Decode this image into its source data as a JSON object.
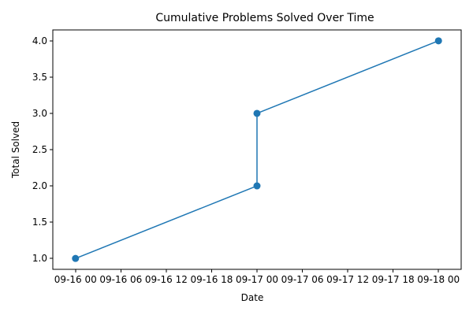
{
  "chart_data": {
    "type": "line",
    "title": "Cumulative Problems Solved Over Time",
    "xlabel": "Date",
    "ylabel": "Total Solved",
    "x_ticks": [
      "09-16 00",
      "09-16 06",
      "09-16 12",
      "09-16 18",
      "09-17 00",
      "09-17 06",
      "09-17 12",
      "09-17 18",
      "09-18 00"
    ],
    "y_ticks": [
      "1.0",
      "1.5",
      "2.0",
      "2.5",
      "3.0",
      "3.5",
      "4.0"
    ],
    "xlim": [
      "09-15 21:00",
      "09-18 03:00"
    ],
    "ylim": [
      0.85,
      4.15
    ],
    "grid": false,
    "series": [
      {
        "name": "",
        "color": "#1f77b4",
        "marker": "circle",
        "x": [
          "09-16 00:00",
          "09-17 00:00",
          "09-17 00:00",
          "09-18 00:00"
        ],
        "y": [
          1,
          2,
          3,
          4
        ]
      }
    ]
  }
}
